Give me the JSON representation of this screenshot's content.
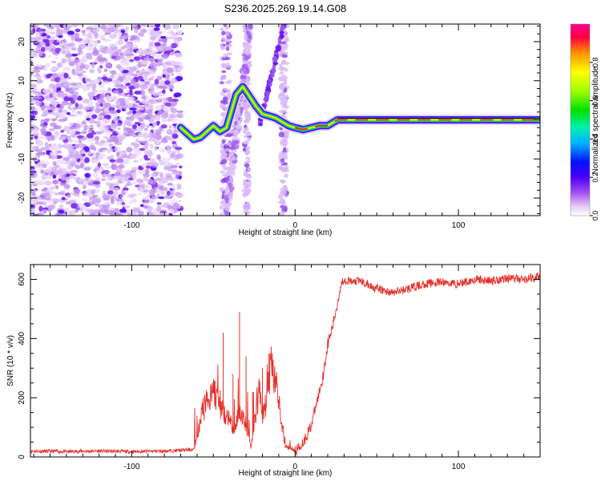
{
  "title": "S236.2025.269.19.14.G08",
  "chart_data": [
    {
      "type": "heatmap",
      "panel": "top",
      "xlabel": "Height of straight line (km)",
      "ylabel": "Frequency (Hz)",
      "xlim": [
        -162,
        150
      ],
      "ylim": [
        -24.5,
        24.5
      ],
      "x_ticks": [
        -100,
        0,
        100
      ],
      "y_ticks": [
        -20,
        -10,
        0,
        10,
        20
      ],
      "noise_region_x": [
        -162,
        -70
      ],
      "signal_ridge": {
        "x": [
          -70,
          -66,
          -62,
          -58,
          -54,
          -50,
          -46,
          -42,
          -36,
          -32,
          -28,
          -24,
          -20,
          -16,
          -12,
          -8,
          -4,
          0,
          5,
          10,
          15,
          20,
          26,
          40,
          60,
          80,
          100,
          120,
          150
        ],
        "y": [
          -2.0,
          -3.5,
          -5.0,
          -4.5,
          -3.0,
          -1.5,
          -3.0,
          -2.0,
          6.5,
          8.5,
          6.0,
          3.5,
          1.5,
          1.0,
          0.5,
          -0.5,
          -1.5,
          -2.0,
          -2.5,
          -2.0,
          -1.5,
          -1.5,
          0.0,
          0.0,
          0.0,
          0.0,
          0.0,
          0.0,
          0.0
        ]
      },
      "colorbar": {
        "label": "Normalized spectral amplitude",
        "range": [
          0,
          1
        ],
        "ticks": [
          0.0,
          0.2,
          0.4,
          0.6,
          0.8
        ]
      }
    },
    {
      "type": "line",
      "panel": "bottom",
      "xlabel": "Height of straight line (km)",
      "ylabel": "SNR (10 * v/v)",
      "xlim": [
        -162,
        150
      ],
      "ylim": [
        0,
        650
      ],
      "x_ticks": [
        -100,
        0,
        100
      ],
      "y_ticks": [
        0,
        200,
        400,
        600
      ],
      "color": "#e8302a",
      "series": [
        {
          "name": "SNR",
          "x": [
            -162,
            -140,
            -120,
            -100,
            -80,
            -62,
            -60,
            -57,
            -54,
            -50,
            -46,
            -43,
            -40,
            -37,
            -34,
            -31,
            -29,
            -27,
            -25,
            -22,
            -20,
            -18,
            -15,
            -12,
            -9,
            -6,
            -3,
            0,
            3,
            6,
            10,
            14,
            17,
            20,
            23,
            26,
            28,
            30,
            35,
            40,
            45,
            50,
            55,
            60,
            70,
            80,
            90,
            100,
            110,
            120,
            130,
            140,
            150
          ],
          "y": [
            20,
            18,
            20,
            18,
            20,
            25,
            65,
            150,
            190,
            220,
            180,
            150,
            120,
            80,
            160,
            120,
            90,
            30,
            120,
            230,
            150,
            170,
            300,
            250,
            150,
            40,
            30,
            20,
            35,
            60,
            110,
            200,
            270,
            380,
            440,
            520,
            580,
            600,
            590,
            595,
            580,
            570,
            560,
            555,
            570,
            585,
            590,
            585,
            600,
            595,
            605,
            600,
            610
          ]
        }
      ],
      "spikes": [
        {
          "x": -44,
          "y": 420
        },
        {
          "x": -38,
          "y": 280
        },
        {
          "x": -34,
          "y": 490
        },
        {
          "x": -30,
          "y": 340
        },
        {
          "x": -26,
          "y": 220
        },
        {
          "x": -20,
          "y": 300
        },
        {
          "x": -16,
          "y": 350
        }
      ]
    }
  ]
}
